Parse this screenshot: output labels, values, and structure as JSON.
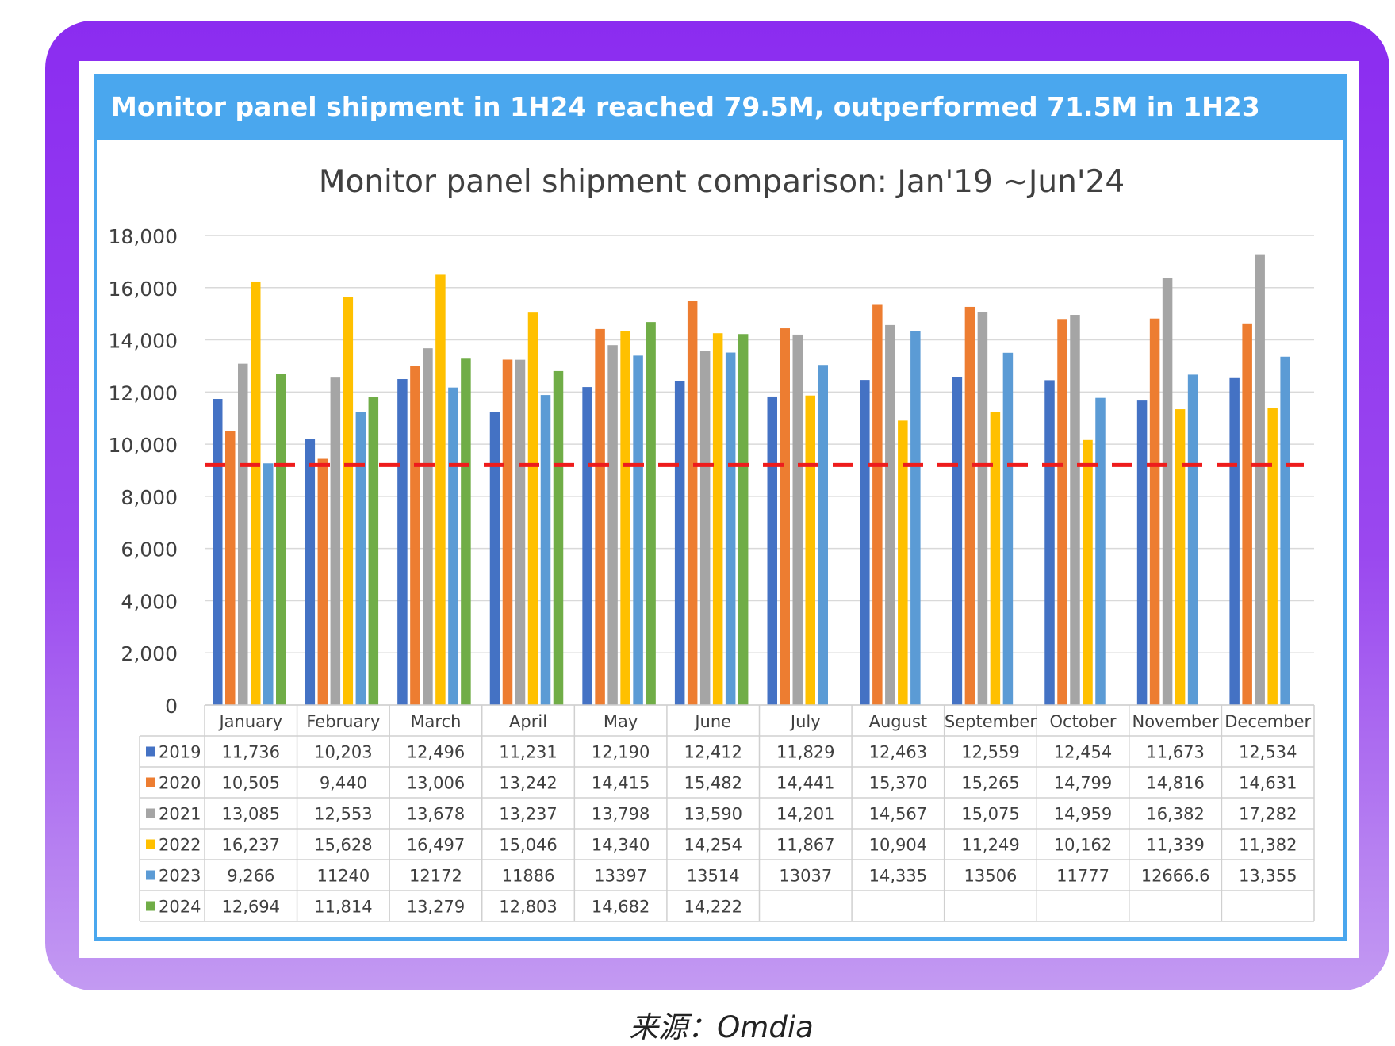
{
  "header": {
    "headline": "Monitor panel shipment in 1H24 reached 79.5M, outperformed 71.5M in 1H23"
  },
  "source": {
    "label": "来源：Omdia"
  },
  "colors": {
    "series": [
      "#4472c4",
      "#ed7d31",
      "#a5a5a5",
      "#ffc000",
      "#5b9bd5",
      "#70ad47"
    ],
    "threshold": "#ee1c1c"
  },
  "chart_data": {
    "type": "bar",
    "title": "Monitor panel shipment comparison: Jan'19 ~Jun'24",
    "xlabel": "",
    "ylabel": "",
    "ylim": [
      0,
      18000
    ],
    "yticks": [
      0,
      2000,
      4000,
      6000,
      8000,
      10000,
      12000,
      14000,
      16000,
      18000
    ],
    "ytick_labels": [
      "0",
      "2,000",
      "4,000",
      "6,000",
      "8,000",
      "10,000",
      "12,000",
      "14,000",
      "16,000",
      "18,000"
    ],
    "grid": true,
    "legend": "data-table",
    "categories": [
      "January",
      "February",
      "March",
      "April",
      "May",
      "June",
      "July",
      "August",
      "September",
      "October",
      "November",
      "December"
    ],
    "reference_line": {
      "value": 9200,
      "style": "dashed"
    },
    "series": [
      {
        "name": "2019",
        "values": [
          11736,
          10203,
          12496,
          11231,
          12190,
          12412,
          11829,
          12463,
          12559,
          12454,
          11673,
          12534
        ],
        "labels": [
          "11,736",
          "10,203",
          "12,496",
          "11,231",
          "12,190",
          "12,412",
          "11,829",
          "12,463",
          "12,559",
          "12,454",
          "11,673",
          "12,534"
        ]
      },
      {
        "name": "2020",
        "values": [
          10505,
          9440,
          13006,
          13242,
          14415,
          15482,
          14441,
          15370,
          15265,
          14799,
          14816,
          14631
        ],
        "labels": [
          "10,505",
          "9,440",
          "13,006",
          "13,242",
          "14,415",
          "15,482",
          "14,441",
          "15,370",
          "15,265",
          "14,799",
          "14,816",
          "14,631"
        ]
      },
      {
        "name": "2021",
        "values": [
          13085,
          12553,
          13678,
          13237,
          13798,
          13590,
          14201,
          14567,
          15075,
          14959,
          16382,
          17282
        ],
        "labels": [
          "13,085",
          "12,553",
          "13,678",
          "13,237",
          "13,798",
          "13,590",
          "14,201",
          "14,567",
          "15,075",
          "14,959",
          "16,382",
          "17,282"
        ]
      },
      {
        "name": "2022",
        "values": [
          16237,
          15628,
          16497,
          15046,
          14340,
          14254,
          11867,
          10904,
          11249,
          10162,
          11339,
          11382
        ],
        "labels": [
          "16,237",
          "15,628",
          "16,497",
          "15,046",
          "14,340",
          "14,254",
          "11,867",
          "10,904",
          "11,249",
          "10,162",
          "11,339",
          "11,382"
        ]
      },
      {
        "name": "2023",
        "values": [
          9266,
          11240,
          12172,
          11886,
          13397,
          13514,
          13037,
          14335,
          13506,
          11777,
          12666.6,
          13355
        ],
        "labels": [
          "9,266",
          "11240",
          "12172",
          "11886",
          "13397",
          "13514",
          "13037",
          "14,335",
          "13506",
          "11777",
          "12666.6",
          "13,355"
        ]
      },
      {
        "name": "2024",
        "values": [
          12694,
          11814,
          13279,
          12803,
          14682,
          14222,
          null,
          null,
          null,
          null,
          null,
          null
        ],
        "labels": [
          "12,694",
          "11,814",
          "13,279",
          "12,803",
          "14,682",
          "14,222",
          "",
          "",
          "",
          "",
          "",
          ""
        ]
      }
    ]
  }
}
